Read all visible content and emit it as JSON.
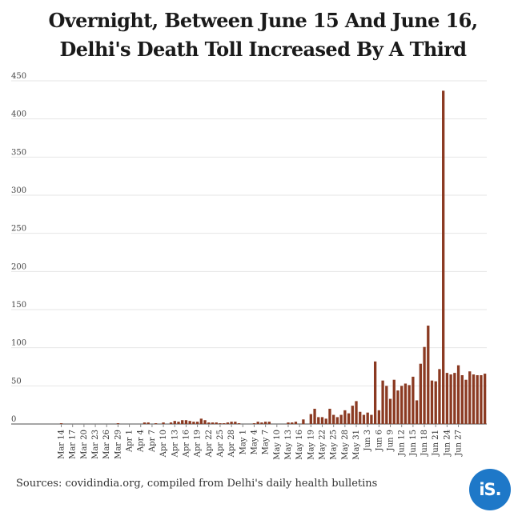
{
  "title_line1": "Overnight, Between June 15 And June 16,",
  "title_line2": "Delhi's Death Toll Increased By A Third",
  "source": "Sources: covidindia.org, compiled from Delhi's daily health bulletins",
  "logo_text": "iS.",
  "colors": {
    "bar": "#8b3a22",
    "grid": "#e6e6e6",
    "axis": "#888888",
    "logo": "#1e78c8"
  },
  "chart_data": {
    "type": "bar",
    "title": "Overnight, Between June 15 And June 16, Delhi's Death Toll Increased By A Third",
    "xlabel": "",
    "ylabel": "",
    "ylim": [
      0,
      450
    ],
    "yticks": [
      0,
      50,
      100,
      150,
      200,
      250,
      300,
      350,
      400,
      450
    ],
    "grid": true,
    "start_date": "Mar 11",
    "x_tick_labels": [
      "Mar 14",
      "Mar 17",
      "Mar 20",
      "Mar 23",
      "Mar 26",
      "Mar 29",
      "Apr 1",
      "Apr 4",
      "Apr 7",
      "Apr 10",
      "Apr 13",
      "Apr 16",
      "Apr 19",
      "Apr 22",
      "Apr 25",
      "Apr 28",
      "May 1",
      "May 4",
      "May 7",
      "May 10",
      "May 13",
      "May 16",
      "May 19",
      "May 22",
      "May 25",
      "May 28",
      "May 31",
      "Jun 3",
      "Jun 6",
      "Jun 9",
      "Jun 12",
      "Jun 15",
      "Jun 18",
      "Jun 21",
      "Jun 24",
      "Jun 27"
    ],
    "values": [
      0,
      0,
      0,
      1,
      0,
      0,
      0,
      0,
      0,
      0,
      0,
      0,
      0,
      0,
      0,
      0,
      0,
      0,
      1,
      0,
      0,
      0,
      0,
      0,
      0,
      2,
      2,
      0,
      1,
      0,
      2,
      0,
      2,
      4,
      3,
      5,
      5,
      4,
      3,
      3,
      7,
      5,
      2,
      2,
      2,
      1,
      1,
      2,
      3,
      3,
      1,
      0,
      0,
      0,
      1,
      3,
      2,
      3,
      3,
      0,
      0,
      0,
      0,
      2,
      2,
      3,
      0,
      6,
      0,
      13,
      20,
      9,
      9,
      7,
      20,
      12,
      9,
      12,
      18,
      14,
      24,
      30,
      16,
      12,
      15,
      12,
      82,
      18,
      57,
      50,
      33,
      58,
      44,
      50,
      53,
      51,
      62,
      31,
      79,
      101,
      129,
      57,
      56,
      72,
      437,
      67,
      65,
      67,
      77,
      64,
      58,
      69,
      65,
      64,
      64,
      66
    ]
  }
}
